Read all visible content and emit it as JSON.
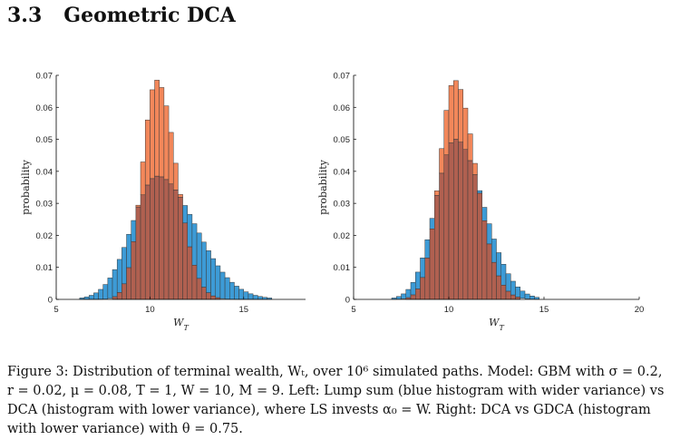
{
  "section": {
    "number": "3.3",
    "title": "Geometric DCA"
  },
  "colors": {
    "blue": "#3d9bd6",
    "orange": "#f2875a",
    "overlap": "#b06050",
    "edge": "#3a3a3a"
  },
  "caption": {
    "line1": "Figure 3: Distribution of terminal wealth, Wₜ, over 10⁶ simulated paths. Model: GBM with σ = 0.2,",
    "line2": "r = 0.02, μ = 0.08, T = 1, W = 10, M = 9. Left: Lump sum (blue histogram with wider variance) vs",
    "line3": "DCA (histogram with lower variance), where LS invests α₀ = W. Right: DCA vs GDCA (histogram",
    "line4": "with lower variance) with θ = 0.75."
  },
  "chart_data": [
    {
      "type": "histogram",
      "ylabel": "probability",
      "xlabel": "W_T",
      "xlim": [
        5,
        18.3
      ],
      "ylim": [
        0,
        0.07
      ],
      "xticks": [
        "5",
        "10",
        "15"
      ],
      "yticks": [
        "0",
        "0.01",
        "0.02",
        "0.03",
        "0.04",
        "0.05",
        "0.06",
        "0.07"
      ],
      "bin_width": 0.25,
      "series": [
        {
          "kind": "wide",
          "color": "blue",
          "peak": 0.0385,
          "mode": 10.4,
          "sigma_left": 1.35,
          "sigma_right": 2.0
        },
        {
          "kind": "narrow",
          "color": "orange",
          "peak": 0.0685,
          "mode": 10.35,
          "sigma_left": 0.75,
          "sigma_right": 1.05
        }
      ]
    },
    {
      "type": "histogram",
      "ylabel": "probability",
      "xlabel": "W_T",
      "xlim": [
        5,
        20
      ],
      "ylim": [
        0,
        0.07
      ],
      "xticks": [
        "5",
        "10",
        "15",
        "20"
      ],
      "yticks": [
        "0",
        "0.01",
        "0.02",
        "0.03",
        "0.04",
        "0.05",
        "0.06",
        "0.07"
      ],
      "bin_width": 0.25,
      "series": [
        {
          "kind": "wide",
          "color": "blue",
          "peak": 0.05,
          "mode": 10.35,
          "sigma_left": 1.05,
          "sigma_right": 1.45
        },
        {
          "kind": "narrow",
          "color": "orange",
          "peak": 0.0685,
          "mode": 10.3,
          "sigma_left": 0.78,
          "sigma_right": 1.1
        }
      ]
    }
  ]
}
